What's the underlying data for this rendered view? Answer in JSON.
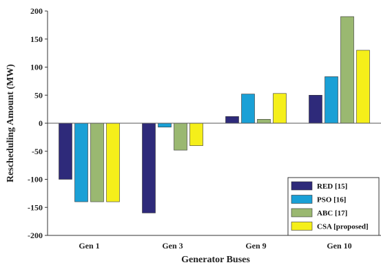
{
  "chart_data": {
    "type": "bar",
    "title": "",
    "xlabel": "Generator Buses",
    "ylabel": "Rescheduling Amount (MW)",
    "categories": [
      "Gen 1",
      "Gen 3",
      "Gen 9",
      "Gen 10"
    ],
    "ylim": [
      -200,
      200
    ],
    "yticks": [
      -200,
      -150,
      -100,
      -50,
      0,
      50,
      100,
      150,
      200
    ],
    "ytick_labels": [
      "-200",
      "-150",
      "-100",
      "-50",
      "0",
      "50",
      "100",
      "150",
      "200"
    ],
    "grid": false,
    "legend_position": "bottom-right",
    "series": [
      {
        "name": "RED [15]",
        "color": "#2e2a7a",
        "values": [
          -100,
          -160,
          12,
          50
        ]
      },
      {
        "name": "PSO [16]",
        "color": "#1aa0d6",
        "values": [
          -140,
          -7,
          52,
          83
        ]
      },
      {
        "name": "ABC [17]",
        "color": "#9ab871",
        "values": [
          -140,
          -48,
          7,
          190
        ]
      },
      {
        "name": "CSA [proposed]",
        "color": "#f5ef1a",
        "values": [
          -140,
          -40,
          53,
          130
        ]
      }
    ]
  }
}
